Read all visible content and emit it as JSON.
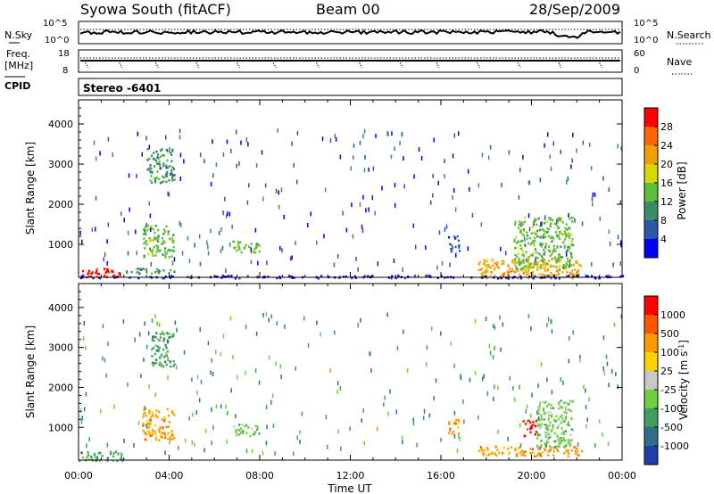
{
  "header": {
    "station": "Syowa South (fitACF)",
    "beam": "Beam 00",
    "date": "28/Sep/2009"
  },
  "noise_panel": {
    "left_label": "N.Sky",
    "right_label": "N.Search",
    "left_ticks": [
      "10^5",
      "10^0"
    ],
    "right_ticks": [
      "10^5",
      "10^0"
    ]
  },
  "freq_panel": {
    "left_label_line1": "Freq.",
    "left_label_line2": "[MHz]",
    "right_label": "Nave",
    "left_ticks": [
      "18",
      "8"
    ],
    "right_ticks": [
      "60",
      "0"
    ]
  },
  "cpid": {
    "label": "CPID",
    "value": "Stereo -6401"
  },
  "colors": {
    "power_scale": [
      "#0000ff",
      "#2b57a8",
      "#3f8a68",
      "#5bbf3a",
      "#d8d800",
      "#f0a000",
      "#ff6600",
      "#ff0000"
    ],
    "velocity_scale": [
      "#1f3fa8",
      "#2f6f8a",
      "#3f9f5f",
      "#6fcf3f",
      "#c8c8c8",
      "#ffd000",
      "#ff9900",
      "#ff5500",
      "#ff0000"
    ]
  },
  "chart_data": [
    {
      "type": "heatmap",
      "panel": "power",
      "xlabel": "Time UT",
      "ylabel": "Slant Range [km]",
      "x_ticks": [
        "00:00",
        "04:00",
        "08:00",
        "12:00",
        "16:00",
        "20:00",
        "00:00"
      ],
      "y_ticks": [
        "1000",
        "2000",
        "3000",
        "4000"
      ],
      "xlim": [
        0,
        24
      ],
      "ylim": [
        180,
        4600
      ],
      "colorbar_label": "Power [dB]",
      "colorbar_ticks": [
        "28",
        "24",
        "20",
        "16",
        "12",
        "8",
        "4"
      ],
      "regions": [
        {
          "t": [
            0.0,
            1.8
          ],
          "r": [
            180,
            420
          ],
          "level": 7
        },
        {
          "t": [
            1.8,
            4.2
          ],
          "r": [
            300,
            420
          ],
          "level": 2
        },
        {
          "t": [
            2.8,
            4.2
          ],
          "r": [
            700,
            1500
          ],
          "level": 3
        },
        {
          "t": [
            3.0,
            4.2
          ],
          "r": [
            2550,
            3400
          ],
          "level": 2
        },
        {
          "t": [
            6.8,
            8.0
          ],
          "r": [
            800,
            1100
          ],
          "level": 3
        },
        {
          "t": [
            16.3,
            16.8
          ],
          "r": [
            850,
            1250
          ],
          "level": 1
        },
        {
          "t": [
            17.6,
            22.2
          ],
          "r": [
            180,
            650
          ],
          "level": 5
        },
        {
          "t": [
            19.2,
            21.8
          ],
          "r": [
            400,
            1700
          ],
          "level": 3
        },
        {
          "t": [
            0.0,
            24.0
          ],
          "r": [
            180,
            250
          ],
          "level": 0
        }
      ]
    },
    {
      "type": "heatmap",
      "panel": "velocity",
      "xlabel": "Time UT",
      "ylabel": "Slant Range [km]",
      "x_ticks": [
        "00:00",
        "04:00",
        "08:00",
        "12:00",
        "16:00",
        "20:00",
        "00:00"
      ],
      "y_ticks": [
        "1000",
        "2000",
        "3000",
        "4000"
      ],
      "xlim": [
        0,
        24
      ],
      "ylim": [
        180,
        4600
      ],
      "colorbar_label": "Velocity [m s^-1]",
      "colorbar_ticks": [
        "1000",
        "500",
        "100",
        "25",
        "-25",
        "-100",
        "-500",
        "-1000"
      ],
      "regions": [
        {
          "t": [
            0.0,
            2.0
          ],
          "r": [
            180,
            420
          ],
          "level": 2
        },
        {
          "t": [
            2.8,
            4.2
          ],
          "r": [
            700,
            1500
          ],
          "level": 6
        },
        {
          "t": [
            3.2,
            4.2
          ],
          "r": [
            2550,
            3400
          ],
          "level": 2
        },
        {
          "t": [
            6.8,
            8.0
          ],
          "r": [
            800,
            1100
          ],
          "level": 3
        },
        {
          "t": [
            16.3,
            16.8
          ],
          "r": [
            850,
            1250
          ],
          "level": 6
        },
        {
          "t": [
            17.6,
            22.2
          ],
          "r": [
            300,
            550
          ],
          "level": 6
        },
        {
          "t": [
            19.6,
            20.2
          ],
          "r": [
            800,
            1200
          ],
          "level": 8
        },
        {
          "t": [
            20.2,
            21.8
          ],
          "r": [
            500,
            1700
          ],
          "level": 3
        }
      ]
    }
  ]
}
